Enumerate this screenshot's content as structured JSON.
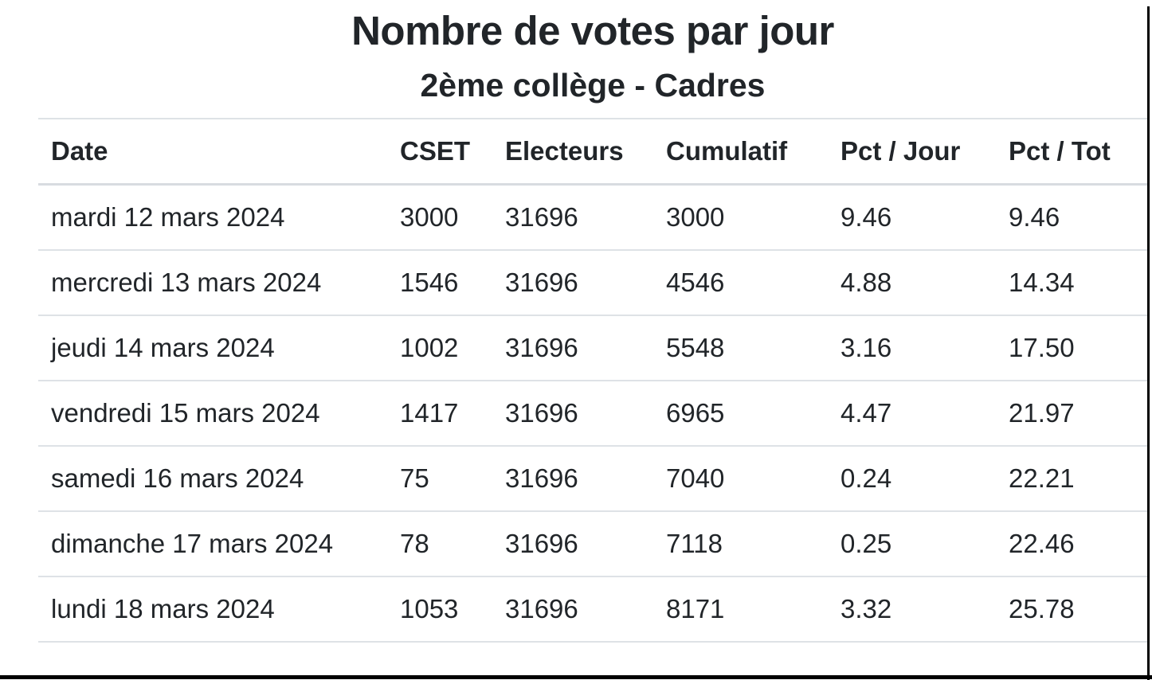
{
  "header": {
    "title": "Nombre de votes par jour",
    "subtitle": "2ème collège - Cadres"
  },
  "table": {
    "columns": [
      "Date",
      "CSET",
      "Electeurs",
      "Cumulatif",
      "Pct / Jour",
      "Pct / Tot"
    ],
    "rows": [
      [
        "mardi 12 mars 2024",
        "3000",
        "31696",
        "3000",
        "9.46",
        "9.46"
      ],
      [
        "mercredi 13 mars 2024",
        "1546",
        "31696",
        "4546",
        "4.88",
        "14.34"
      ],
      [
        "jeudi 14 mars 2024",
        "1002",
        "31696",
        "5548",
        "3.16",
        "17.50"
      ],
      [
        "vendredi 15 mars 2024",
        "1417",
        "31696",
        "6965",
        "4.47",
        "21.97"
      ],
      [
        "samedi 16 mars 2024",
        "75",
        "31696",
        "7040",
        "0.24",
        "22.21"
      ],
      [
        "dimanche 17 mars 2024",
        "78",
        "31696",
        "7118",
        "0.25",
        "22.46"
      ],
      [
        "lundi 18 mars 2024",
        "1053",
        "31696",
        "8171",
        "3.32",
        "25.78"
      ]
    ]
  },
  "colors": {
    "text": "#212529",
    "row_border": "#dee2e6",
    "header_border": "#d8dce0",
    "frame": "#000000"
  }
}
